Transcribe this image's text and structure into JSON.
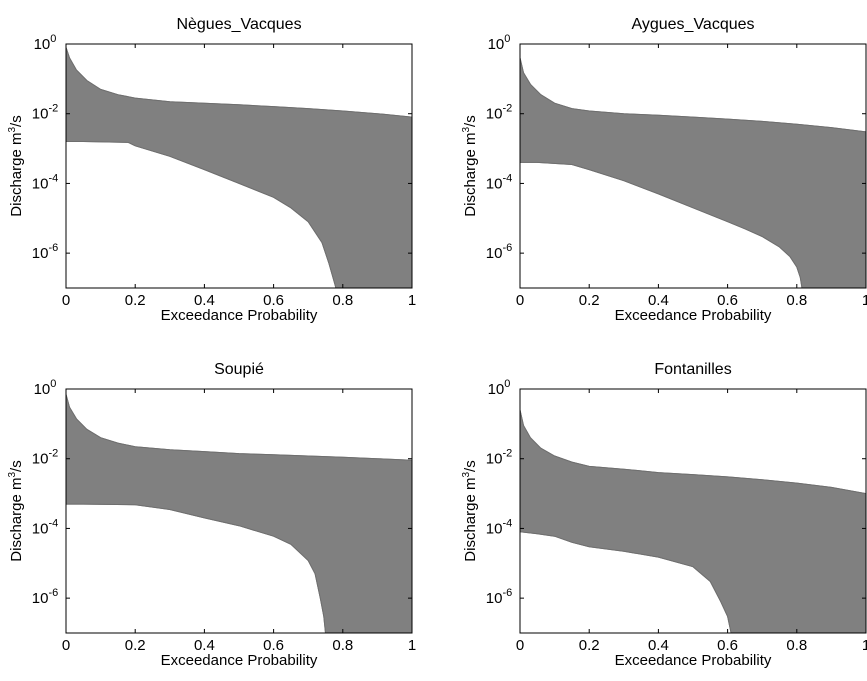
{
  "chart_data": [
    {
      "type": "area",
      "title": "Nègues_Vacques",
      "xlabel": "Exceedance Probability",
      "ylabel_main": "Discharge m",
      "ylabel_sup": "3",
      "ylabel_tail": "/s",
      "x_scale": "linear",
      "y_scale": "log",
      "xlim": [
        0,
        1
      ],
      "ylim_exp": [
        -7,
        0
      ],
      "x_ticks": [
        "0",
        "0.2",
        "0.4",
        "0.6",
        "0.8",
        "1"
      ],
      "y_ticks": [
        {
          "base": "10",
          "exp": "0"
        },
        {
          "base": "10",
          "exp": "-2"
        },
        {
          "base": "10",
          "exp": "-4"
        },
        {
          "base": "10",
          "exp": "-6"
        }
      ],
      "band_color": "#808080",
      "upper_envelope": {
        "x": [
          0,
          0.01,
          0.03,
          0.06,
          0.1,
          0.15,
          0.2,
          0.3,
          0.4,
          0.5,
          0.6,
          0.7,
          0.8,
          0.9,
          1.0
        ],
        "y": [
          0.8,
          0.4,
          0.18,
          0.09,
          0.05,
          0.035,
          0.028,
          0.022,
          0.02,
          0.018,
          0.016,
          0.014,
          0.012,
          0.01,
          0.008
        ]
      },
      "lower_envelope": {
        "x": [
          0,
          0.05,
          0.18,
          0.2,
          0.3,
          0.4,
          0.5,
          0.6,
          0.65,
          0.7,
          0.74,
          0.76,
          0.775,
          0.78
        ],
        "y": [
          0.0016,
          0.0016,
          0.0015,
          0.0012,
          0.0006,
          0.00025,
          0.0001,
          4e-05,
          2e-05,
          8e-06,
          2e-06,
          5e-07,
          1.5e-07,
          1e-07
        ]
      }
    },
    {
      "type": "area",
      "title": "Aygues_Vacques",
      "xlabel": "Exceedance Probability",
      "ylabel_main": "Discharge m",
      "ylabel_sup": "3",
      "ylabel_tail": "/s",
      "x_scale": "linear",
      "y_scale": "log",
      "xlim": [
        0,
        1
      ],
      "ylim_exp": [
        -7,
        0
      ],
      "x_ticks": [
        "0",
        "0.2",
        "0.4",
        "0.6",
        "0.8",
        "1"
      ],
      "y_ticks": [
        {
          "base": "10",
          "exp": "0"
        },
        {
          "base": "10",
          "exp": "-2"
        },
        {
          "base": "10",
          "exp": "-4"
        },
        {
          "base": "10",
          "exp": "-6"
        }
      ],
      "band_color": "#808080",
      "upper_envelope": {
        "x": [
          0,
          0.01,
          0.03,
          0.06,
          0.1,
          0.15,
          0.2,
          0.3,
          0.4,
          0.5,
          0.6,
          0.7,
          0.8,
          0.9,
          1.0
        ],
        "y": [
          0.4,
          0.15,
          0.07,
          0.035,
          0.02,
          0.014,
          0.012,
          0.01,
          0.009,
          0.008,
          0.007,
          0.006,
          0.005,
          0.004,
          0.003
        ]
      },
      "lower_envelope": {
        "x": [
          0,
          0.05,
          0.15,
          0.2,
          0.3,
          0.4,
          0.5,
          0.6,
          0.65,
          0.7,
          0.75,
          0.78,
          0.8,
          0.81,
          0.815
        ],
        "y": [
          0.0004,
          0.0004,
          0.00035,
          0.00025,
          0.00012,
          5e-05,
          2e-05,
          8e-06,
          5e-06,
          3e-06,
          1.5e-06,
          8e-07,
          4e-07,
          2e-07,
          1e-07
        ]
      }
    },
    {
      "type": "area",
      "title": "Soupié",
      "xlabel": "Exceedance Probability",
      "ylabel_main": "Discharge m",
      "ylabel_sup": "3",
      "ylabel_tail": "/s",
      "x_scale": "linear",
      "y_scale": "log",
      "xlim": [
        0,
        1
      ],
      "ylim_exp": [
        -7,
        0
      ],
      "x_ticks": [
        "0",
        "0.2",
        "0.4",
        "0.6",
        "0.8",
        "1"
      ],
      "y_ticks": [
        {
          "base": "10",
          "exp": "0"
        },
        {
          "base": "10",
          "exp": "-2"
        },
        {
          "base": "10",
          "exp": "-4"
        },
        {
          "base": "10",
          "exp": "-6"
        }
      ],
      "band_color": "#808080",
      "upper_envelope": {
        "x": [
          0,
          0.01,
          0.03,
          0.06,
          0.1,
          0.15,
          0.2,
          0.3,
          0.4,
          0.5,
          0.6,
          0.7,
          0.8,
          0.9,
          1.0
        ],
        "y": [
          0.7,
          0.3,
          0.14,
          0.07,
          0.04,
          0.028,
          0.022,
          0.018,
          0.016,
          0.014,
          0.013,
          0.012,
          0.011,
          0.01,
          0.009
        ]
      },
      "lower_envelope": {
        "x": [
          0,
          0.05,
          0.2,
          0.3,
          0.4,
          0.5,
          0.6,
          0.65,
          0.7,
          0.72,
          0.735,
          0.745,
          0.75
        ],
        "y": [
          0.0005,
          0.0005,
          0.00048,
          0.00035,
          0.0002,
          0.00012,
          6e-05,
          3.5e-05,
          1.2e-05,
          5e-06,
          1e-06,
          3e-07,
          1e-07
        ]
      }
    },
    {
      "type": "area",
      "title": "Fontanilles",
      "xlabel": "Exceedance Probability",
      "ylabel_main": "Discharge m",
      "ylabel_sup": "3",
      "ylabel_tail": "/s",
      "x_scale": "linear",
      "y_scale": "log",
      "xlim": [
        0,
        1
      ],
      "ylim_exp": [
        -7,
        0
      ],
      "x_ticks": [
        "0",
        "0.2",
        "0.4",
        "0.6",
        "0.8",
        "1"
      ],
      "y_ticks": [
        {
          "base": "10",
          "exp": "0"
        },
        {
          "base": "10",
          "exp": "-2"
        },
        {
          "base": "10",
          "exp": "-4"
        },
        {
          "base": "10",
          "exp": "-6"
        }
      ],
      "band_color": "#808080",
      "upper_envelope": {
        "x": [
          0,
          0.01,
          0.03,
          0.06,
          0.1,
          0.15,
          0.2,
          0.3,
          0.4,
          0.5,
          0.6,
          0.7,
          0.8,
          0.9,
          1.0
        ],
        "y": [
          0.25,
          0.09,
          0.04,
          0.02,
          0.012,
          0.008,
          0.006,
          0.005,
          0.004,
          0.0035,
          0.003,
          0.0025,
          0.002,
          0.0015,
          0.001
        ]
      },
      "lower_envelope": {
        "x": [
          0,
          0.05,
          0.1,
          0.15,
          0.2,
          0.3,
          0.4,
          0.5,
          0.55,
          0.58,
          0.6,
          0.61
        ],
        "y": [
          8e-05,
          7e-05,
          6e-05,
          4e-05,
          3e-05,
          2.2e-05,
          1.5e-05,
          8e-06,
          3e-06,
          8e-07,
          3e-07,
          1e-07
        ]
      }
    }
  ]
}
